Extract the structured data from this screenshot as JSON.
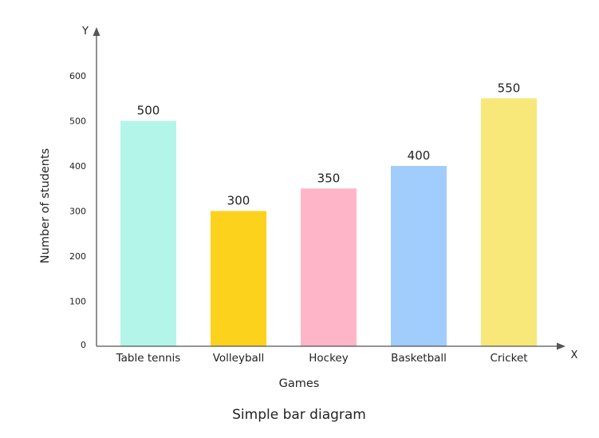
{
  "chart_data": {
    "type": "bar",
    "title": "",
    "caption": "Simple bar diagram",
    "xlabel": "Games",
    "ylabel": "Number of students",
    "x_axis_letter": "X",
    "y_axis_letter": "Y",
    "categories": [
      "Table tennis",
      "Volleyball",
      "Hockey",
      "Basketball",
      "Cricket"
    ],
    "values": [
      500,
      300,
      350,
      400,
      550
    ],
    "colors": [
      "#b3f5e8",
      "#fcd21d",
      "#ffb5c8",
      "#a0cdfb",
      "#f8e87a"
    ],
    "yticks": [
      0,
      100,
      200,
      300,
      400,
      500,
      600
    ],
    "ylim": [
      0,
      600
    ],
    "grid": false,
    "legend": "none"
  }
}
